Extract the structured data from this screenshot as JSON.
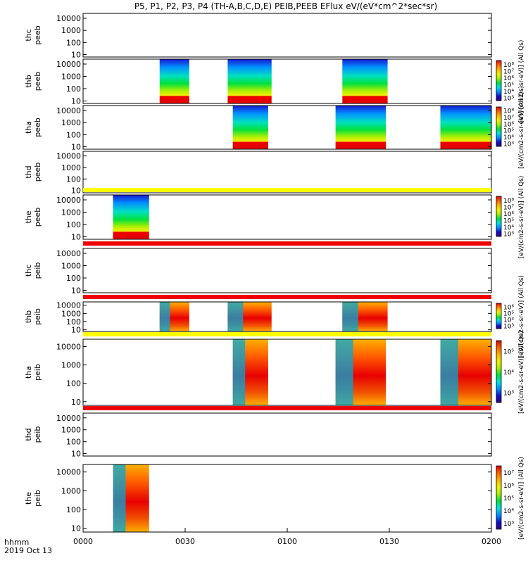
{
  "title": "P5, P1, P2, P3, P4 (TH-A,B,C,D,E) PEIB,PEEB EFlux eV/(eV*cm^2*sec*sr)",
  "time_axis": {
    "label_line1": "hhmm",
    "label_line2": "2019 Oct 13",
    "ticks": [
      "0000",
      "0030",
      "0100",
      "0130",
      "0200"
    ],
    "start_min": 0,
    "end_min": 120
  },
  "chart_data": {
    "type": "heatmap",
    "x_unit": "minutes after 2019-10-13 00:00 UT",
    "y_scale": "log",
    "y_ticks": [
      "10",
      "100",
      "1000",
      "10000"
    ],
    "colormap": [
      "#30007a",
      "#1010d0",
      "#0090ff",
      "#00e0e0",
      "#00e040",
      "#a0f000",
      "#f0f000",
      "#ffb000",
      "#ff6000",
      "#e00000"
    ],
    "panels": [
      {
        "label1": "thc",
        "label2": "peeb",
        "top": 19,
        "bottom": 81,
        "segments": [],
        "strip": null,
        "cbar": null
      },
      {
        "label1": "thb",
        "label2": "peeb",
        "top": 84,
        "bottom": 147,
        "strip": null,
        "segments": [
          [
            22.5,
            31.2
          ],
          [
            42.5,
            55.4
          ],
          [
            76.2,
            89.5
          ]
        ],
        "profile": "electron",
        "cbar": {
          "ticks": [
            "10^3",
            "10^4",
            "10^5",
            "10^6",
            "10^7",
            "10^8"
          ],
          "label": "[eV/(cm2-s-sr-eV)] (All Qs)"
        }
      },
      {
        "label1": "tha",
        "label2": "peeb",
        "top": 150,
        "bottom": 212,
        "strip": null,
        "segments": [
          [
            44.0,
            54.4
          ],
          [
            74.2,
            89.0
          ],
          [
            105.0,
            120
          ]
        ],
        "profile": "electron",
        "cbar": {
          "ticks": [
            "10^3",
            "10^4",
            "10^5",
            "10^6",
            "10^7",
            "10^8"
          ],
          "label": "[eV/(cm2-s-sr-eV)] (All Qs)"
        }
      },
      {
        "label1": "thd",
        "label2": "peeb",
        "top": 215,
        "bottom": 274,
        "segments": [],
        "strip": null,
        "cbar": null
      },
      {
        "label1": "the",
        "label2": "peeb",
        "top": 277,
        "bottom": 340,
        "strip": "#ffff00",
        "segments": [
          [
            8.8,
            19.4
          ]
        ],
        "profile": "electron",
        "cbar": {
          "ticks": [
            "10^3",
            "10^4",
            "10^5",
            "10^6",
            "10^7",
            "10^8"
          ],
          "label": "[eV/(cm2-s-sr-eV)] (All Qs)"
        }
      },
      {
        "label1": "thc",
        "label2": "peib",
        "top": 353,
        "bottom": 416,
        "segments": [],
        "strip": "#ee0000",
        "cbar": null
      },
      {
        "label1": "thb",
        "label2": "peib",
        "top": 429,
        "bottom": 471,
        "strip": "#ee0000",
        "segments": [
          [
            22.5,
            31.2
          ],
          [
            42.5,
            55.4
          ],
          [
            76.2,
            89.5
          ]
        ],
        "profile": "ion",
        "cbar": {
          "ticks": [
            "10^3",
            "10^4",
            "10^5",
            "10^6"
          ],
          "label": "[eV/(cm2-s-sr-eV)] (All Qs)"
        }
      },
      {
        "label1": "tha",
        "label2": "peib",
        "top": 482,
        "bottom": 576,
        "strip": "#ffff00",
        "segments": [
          [
            44.0,
            54.4
          ],
          [
            74.2,
            89.0
          ],
          [
            105.0,
            120
          ]
        ],
        "profile": "ion",
        "cbar": {
          "ticks": [
            "10^3",
            "10^4",
            "10^5"
          ],
          "label": "[eV/(cm2-s-sr-eV)] (All Qs)"
        }
      },
      {
        "label1": "thd",
        "label2": "peib",
        "top": 587,
        "bottom": 648,
        "segments": [],
        "strip": "#ee0000",
        "cbar": null
      },
      {
        "label1": "the",
        "label2": "peib",
        "top": 660,
        "bottom": 756,
        "strip": null,
        "segments": [
          [
            8.8,
            19.4
          ]
        ],
        "profile": "ion",
        "cbar": {
          "ticks": [
            "10^3",
            "10^4",
            "10^5",
            "10^6",
            "10^7"
          ],
          "label": "[eV/(cm2-s-sr-eV)] (All Qs)"
        }
      }
    ]
  }
}
